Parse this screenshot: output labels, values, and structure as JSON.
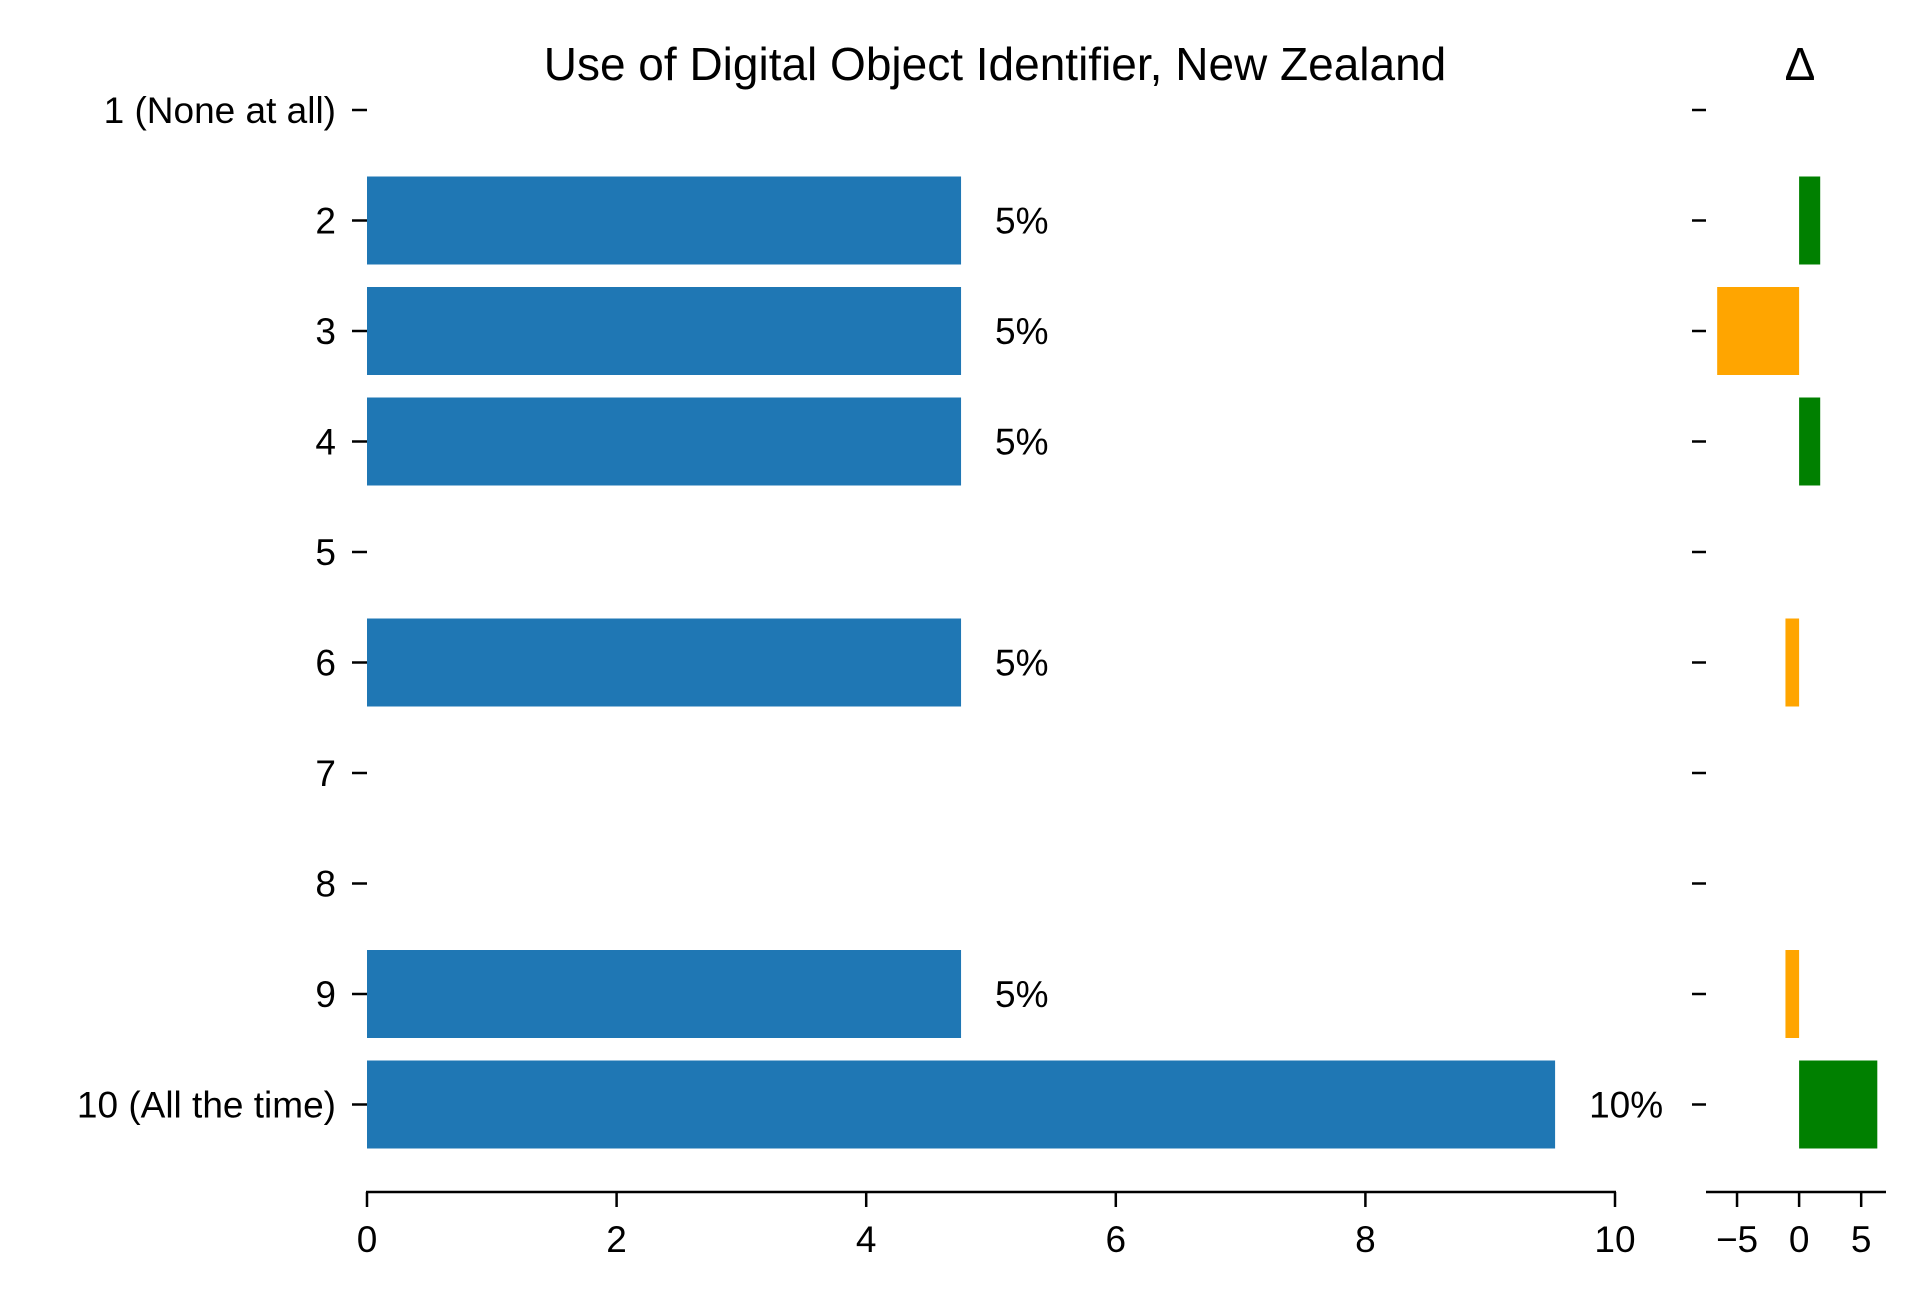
{
  "chart_data": [
    {
      "type": "bar",
      "orientation": "horizontal",
      "title": "Use of Digital Object Identifier, New Zealand",
      "categories": [
        "1 (None at all)",
        "2",
        "3",
        "4",
        "5",
        "6",
        "7",
        "8",
        "9",
        "10 (All the time)"
      ],
      "values": [
        0,
        4.76,
        4.76,
        4.76,
        0,
        4.76,
        0,
        0,
        4.76,
        9.52
      ],
      "data_labels": [
        "",
        "5%",
        "5%",
        "5%",
        "",
        "5%",
        "",
        "",
        "5%",
        "10%"
      ],
      "xlim": [
        0,
        10
      ],
      "xticks": [
        "0",
        "2",
        "4",
        "6",
        "8",
        "10"
      ],
      "bar_color": "#1f77b4",
      "grid": false
    },
    {
      "type": "bar",
      "orientation": "horizontal",
      "title": "Δ",
      "categories": [
        "1 (None at all)",
        "2",
        "3",
        "4",
        "5",
        "6",
        "7",
        "8",
        "9",
        "10 (All the time)"
      ],
      "values": [
        0,
        1.7,
        -6.6,
        1.7,
        0,
        -1.1,
        0,
        0,
        -1.1,
        6.3
      ],
      "xlim": [
        -7.5,
        7
      ],
      "xticks": [
        "−5",
        "0",
        "5"
      ],
      "positive_color": "#008000",
      "negative_color": "#ffa500",
      "grid": false
    }
  ]
}
